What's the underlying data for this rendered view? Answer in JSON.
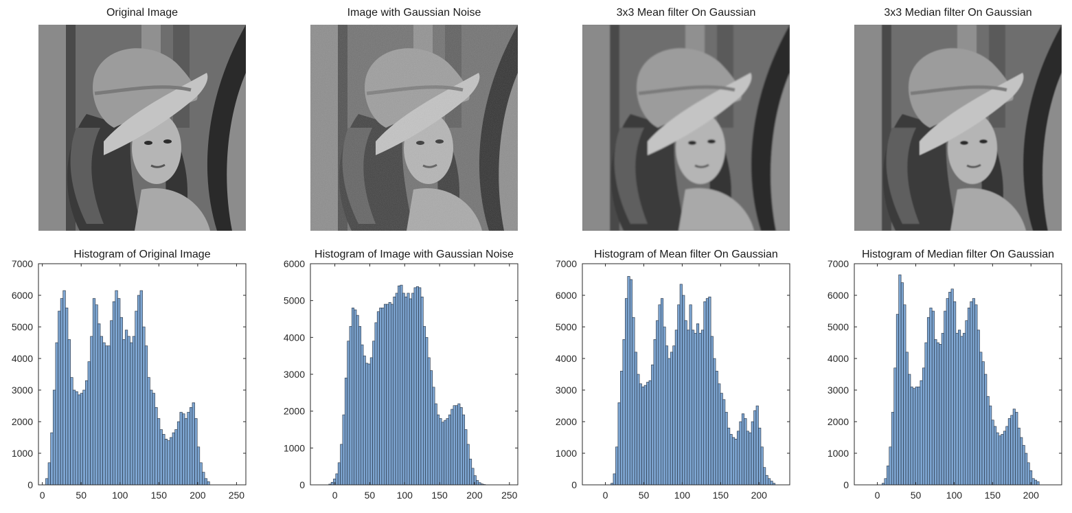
{
  "colors": {
    "bar_fill": "#7ea6d2",
    "bar_edge": "#1f2937",
    "axis": "#262626"
  },
  "images": [
    {
      "title": "Original Image",
      "variant": "original"
    },
    {
      "title": "Image with Gaussian Noise",
      "variant": "noise"
    },
    {
      "title": "3x3 Mean filter On Gaussian",
      "variant": "mean"
    },
    {
      "title": "3x3 Median filter On Gaussian",
      "variant": "median"
    }
  ],
  "chart_data": [
    {
      "type": "bar",
      "title": "Histogram of Original Image",
      "xlim": [
        -5,
        262
      ],
      "ylim": [
        0,
        7000
      ],
      "xticks": [
        0,
        50,
        100,
        150,
        200,
        250
      ],
      "yticks": [
        0,
        1000,
        2000,
        3000,
        4000,
        5000,
        6000,
        7000
      ],
      "bin_width": 3.2,
      "bin_start": 1,
      "values": [
        0,
        200,
        700,
        1650,
        3000,
        4500,
        5500,
        5900,
        6150,
        5600,
        4600,
        3400,
        3000,
        2950,
        2850,
        2900,
        3000,
        3300,
        3900,
        4700,
        5900,
        5700,
        5100,
        4700,
        4500,
        4400,
        4400,
        5200,
        5800,
        6150,
        5900,
        5300,
        4600,
        4900,
        4700,
        4500,
        4700,
        5500,
        6000,
        6150,
        5000,
        4400,
        3400,
        3000,
        2900,
        2450,
        2100,
        1750,
        1600,
        1450,
        1400,
        1500,
        1650,
        1750,
        2000,
        2300,
        2250,
        2100,
        2300,
        2450,
        2600,
        2100,
        1200,
        700,
        400,
        200,
        100,
        0,
        0,
        0,
        0
      ]
    },
    {
      "type": "bar",
      "title": "Histogram of Image with Gaussian Noise",
      "xlim": [
        -35,
        262
      ],
      "ylim": [
        0,
        6000
      ],
      "xticks": [
        0,
        50,
        100,
        150,
        200,
        250
      ],
      "yticks": [
        0,
        1000,
        2000,
        3000,
        4000,
        5000,
        6000
      ],
      "bin_width": 3.3,
      "bin_start": -12,
      "values": [
        0,
        20,
        70,
        160,
        300,
        600,
        1100,
        1900,
        2900,
        3900,
        4300,
        4800,
        4750,
        4600,
        4300,
        3800,
        3500,
        3300,
        3280,
        3450,
        3900,
        4400,
        4700,
        4800,
        4800,
        4900,
        4900,
        4950,
        4900,
        5100,
        5200,
        5400,
        5420,
        5200,
        5100,
        5200,
        5050,
        5200,
        5350,
        5380,
        5350,
        5100,
        4300,
        4000,
        3450,
        3100,
        2650,
        2200,
        1900,
        1800,
        1700,
        1750,
        1800,
        1900,
        2050,
        2150,
        2150,
        2200,
        2100,
        1900,
        1500,
        1100,
        700,
        450,
        250,
        120,
        60,
        25,
        10,
        0,
        0
      ]
    },
    {
      "type": "bar",
      "title": "Histogram of Mean filter On Gaussian",
      "xlim": [
        -30,
        240
      ],
      "ylim": [
        0,
        7000
      ],
      "xticks": [
        0,
        50,
        100,
        150,
        200
      ],
      "yticks": [
        0,
        1000,
        2000,
        3000,
        4000,
        5000,
        6000,
        7000
      ],
      "bin_width": 3.1,
      "bin_start": 4,
      "values": [
        0,
        50,
        350,
        1200,
        2600,
        3600,
        4600,
        5900,
        6600,
        6500,
        5300,
        4200,
        3500,
        3200,
        3100,
        3150,
        3250,
        3300,
        3800,
        4600,
        5200,
        5700,
        5900,
        5000,
        4400,
        4000,
        4200,
        4400,
        4900,
        5700,
        6350,
        6000,
        5200,
        4900,
        5700,
        4900,
        4800,
        5100,
        4800,
        4900,
        5800,
        5900,
        5950,
        4700,
        4000,
        3600,
        3200,
        2900,
        2700,
        2300,
        1800,
        1600,
        1500,
        1450,
        1700,
        2000,
        2250,
        2100,
        1700,
        1650,
        2000,
        2350,
        2500,
        1800,
        1200,
        550,
        300,
        200,
        120,
        50,
        0
      ]
    },
    {
      "type": "bar",
      "title": "Histogram of Median filter On Gaussian",
      "xlim": [
        -30,
        240
      ],
      "ylim": [
        0,
        7000
      ],
      "xticks": [
        0,
        50,
        100,
        150,
        200
      ],
      "yticks": [
        0,
        1000,
        2000,
        3000,
        4000,
        5000,
        6000,
        7000
      ],
      "bin_width": 3.1,
      "bin_start": 3,
      "values": [
        0,
        50,
        200,
        600,
        1200,
        2300,
        3700,
        5400,
        6650,
        6400,
        5700,
        4200,
        3500,
        3100,
        3050,
        3100,
        3100,
        3300,
        3700,
        4500,
        5300,
        5600,
        5500,
        4600,
        4500,
        4450,
        4800,
        5500,
        5900,
        6100,
        6200,
        5800,
        4800,
        4900,
        4700,
        4800,
        5200,
        5600,
        5800,
        5900,
        5700,
        4900,
        4200,
        3900,
        3500,
        2800,
        2500,
        2050,
        1850,
        1650,
        1550,
        1600,
        1700,
        1850,
        2100,
        2200,
        2400,
        2300,
        1800,
        1500,
        1250,
        1000,
        700,
        450,
        200,
        150,
        100,
        0,
        0,
        0,
        0
      ]
    }
  ]
}
